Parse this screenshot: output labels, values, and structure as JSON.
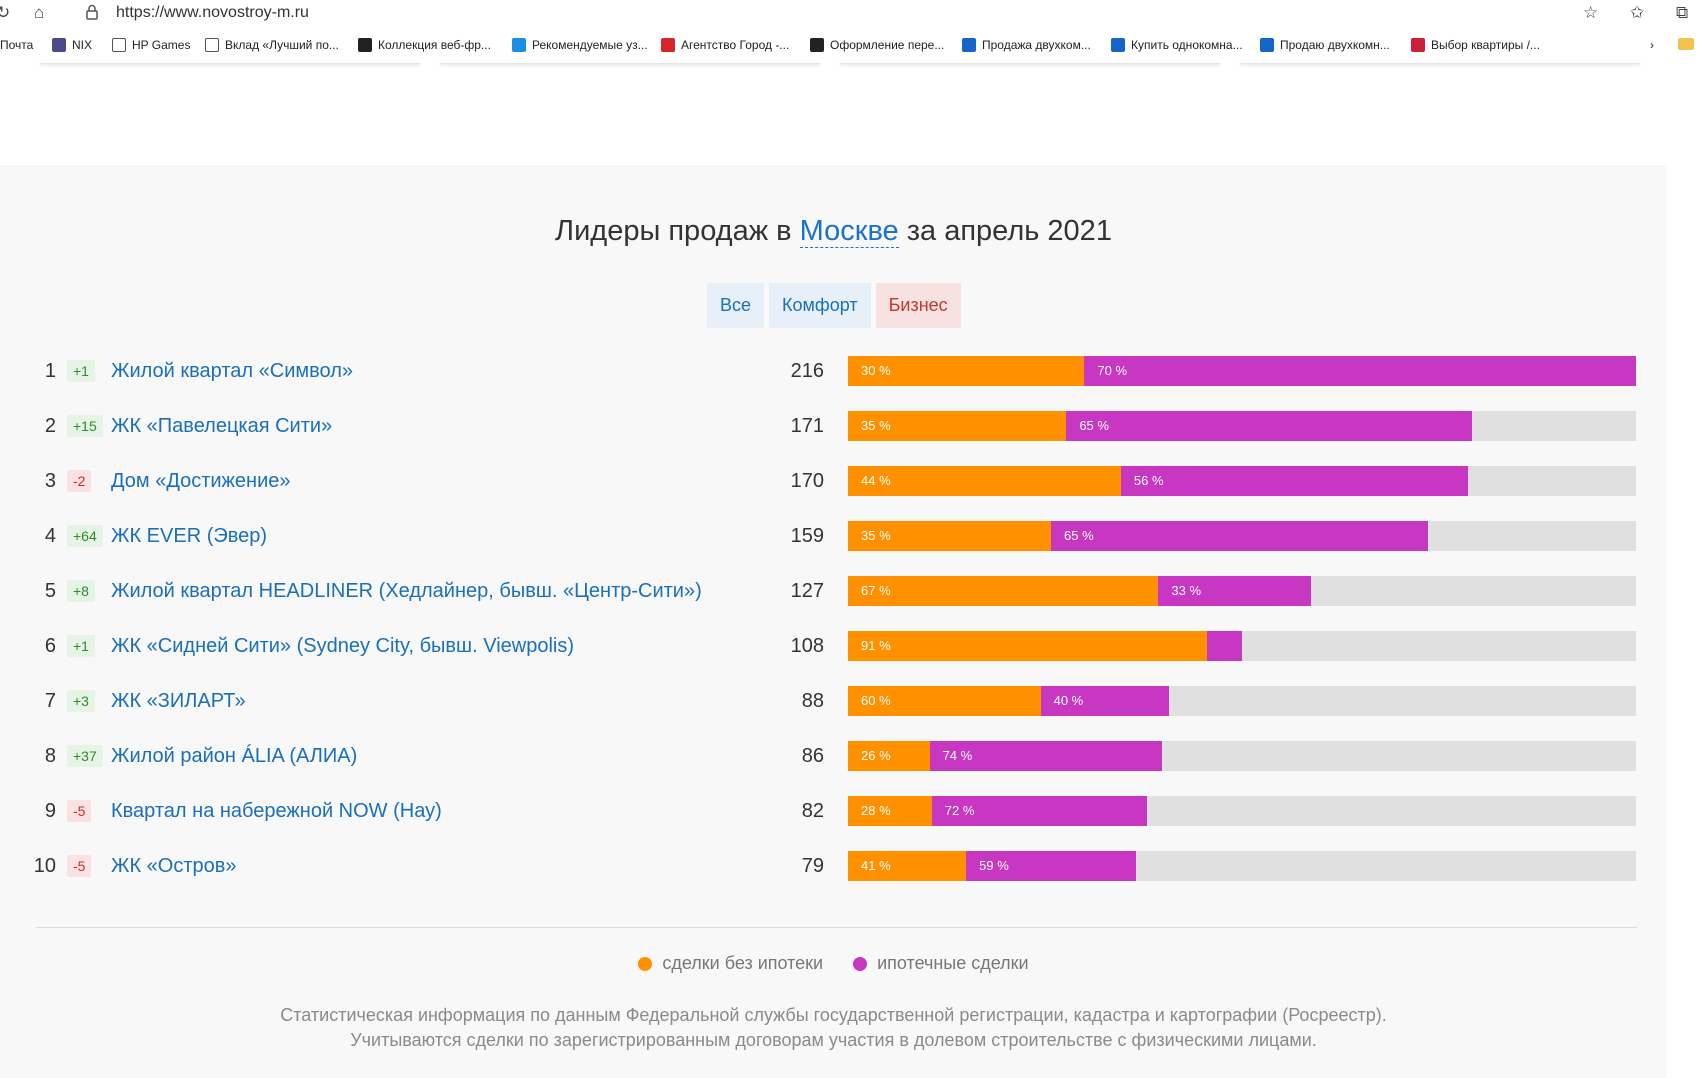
{
  "browser": {
    "url": "https://www.novostroy-m.ru",
    "bookmarks": [
      {
        "label": "Почта",
        "icon": "mail-icon",
        "color": "#ffffff"
      },
      {
        "label": "NIX",
        "icon": "nix-icon",
        "color": "#4a4a8a"
      },
      {
        "label": "HP Games",
        "icon": "page-icon",
        "color": "#ffffff"
      },
      {
        "label": "Вклад «Лучший по...",
        "icon": "page-icon",
        "color": "#ffffff"
      },
      {
        "label": "Коллекция веб-фр...",
        "icon": "collection-icon",
        "color": "#222222"
      },
      {
        "label": "Рекомендуемые уз...",
        "icon": "bing-icon",
        "color": "#1b8fe0"
      },
      {
        "label": "Агентство Город -...",
        "icon": "gorod-icon",
        "color": "#d7262b"
      },
      {
        "label": "Оформление пере...",
        "icon": "plus-icon",
        "color": "#222222"
      },
      {
        "label": "Продажа двухком...",
        "icon": "avito-icon",
        "color": "#1466c9"
      },
      {
        "label": "Купить однокомна...",
        "icon": "avito-icon",
        "color": "#1466c9"
      },
      {
        "label": "Продаю двухкомн...",
        "icon": "avito-icon",
        "color": "#1466c9"
      },
      {
        "label": "Выбор квартиры /...",
        "icon": "rg-icon",
        "color": "#cc1f3a"
      }
    ]
  },
  "section": {
    "title_prefix": "Лидеры продаж в",
    "title_city": "Москве",
    "title_suffix": "за апрель 2021",
    "tabs": [
      {
        "label": "Все",
        "active": false
      },
      {
        "label": "Комфорт",
        "active": false
      },
      {
        "label": "Бизнес",
        "active": true
      }
    ]
  },
  "leaders": [
    {
      "rank": "1",
      "delta": "+1",
      "trend": "up",
      "name": "Жилой квартал «Символ»",
      "count": 216,
      "cash_pct": 30,
      "mort_pct": 70,
      "cash_label": "30 %",
      "mort_label": "70 %"
    },
    {
      "rank": "2",
      "delta": "+15",
      "trend": "up",
      "name": "ЖК «Павелецкая Сити»",
      "count": 171,
      "cash_pct": 35,
      "mort_pct": 65,
      "cash_label": "35 %",
      "mort_label": "65 %"
    },
    {
      "rank": "3",
      "delta": "-2",
      "trend": "down",
      "name": "Дом «Достижение»",
      "count": 170,
      "cash_pct": 44,
      "mort_pct": 56,
      "cash_label": "44 %",
      "mort_label": "56 %"
    },
    {
      "rank": "4",
      "delta": "+64",
      "trend": "up",
      "name": "ЖК EVER (Эвер)",
      "count": 159,
      "cash_pct": 35,
      "mort_pct": 65,
      "cash_label": "35 %",
      "mort_label": "65 %"
    },
    {
      "rank": "5",
      "delta": "+8",
      "trend": "up",
      "name": "Жилой квартал HEADLINER (Хедлайнер, бывш. «Центр-Сити»)",
      "count": 127,
      "cash_pct": 67,
      "mort_pct": 33,
      "cash_label": "67 %",
      "mort_label": "33 %"
    },
    {
      "rank": "6",
      "delta": "+1",
      "trend": "up",
      "name": "ЖК «Сидней Сити» (Sydney City, бывш. Viewpolis)",
      "count": 108,
      "cash_pct": 91,
      "mort_pct": 9,
      "cash_label": "91 %",
      "mort_label": ""
    },
    {
      "rank": "7",
      "delta": "+3",
      "trend": "up",
      "name": "ЖК «ЗИЛАРТ»",
      "count": 88,
      "cash_pct": 60,
      "mort_pct": 40,
      "cash_label": "60 %",
      "mort_label": "40 %"
    },
    {
      "rank": "8",
      "delta": "+37",
      "trend": "up",
      "name": "Жилой район ÁLIA (АЛИА)",
      "count": 86,
      "cash_pct": 26,
      "mort_pct": 74,
      "cash_label": "26 %",
      "mort_label": "74 %"
    },
    {
      "rank": "9",
      "delta": "-5",
      "trend": "down",
      "name": "Квартал на набережной NOW (Нау)",
      "count": 82,
      "cash_pct": 28,
      "mort_pct": 72,
      "cash_label": "28 %",
      "mort_label": "72 %"
    },
    {
      "rank": "10",
      "delta": "-5",
      "trend": "down",
      "name": "ЖК «Остров»",
      "count": 79,
      "cash_pct": 41,
      "mort_pct": 59,
      "cash_label": "41 %",
      "mort_label": "59 %"
    }
  ],
  "max_count": 216,
  "legend": {
    "cash_label": "сделки без ипотеки",
    "mortgage_label": "ипотечные сделки",
    "cash_color": "#ff9100",
    "mortgage_color": "#c837c2"
  },
  "note": {
    "line1": "Статистическая информация по данным Федеральной службы государственной регистрации, кадастра и картографии (Росреестр).",
    "line2": "Учитываются сделки по зарегистрированным договорам участия в долевом строительстве с физическими лицами."
  }
}
